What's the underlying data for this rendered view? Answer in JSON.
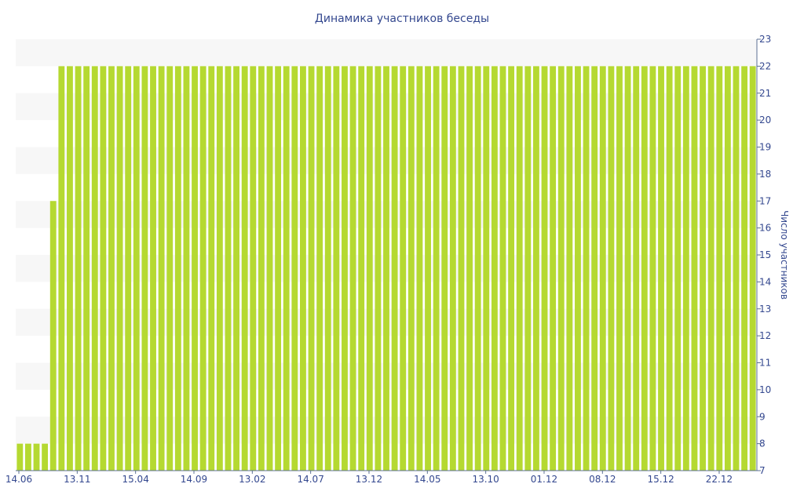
{
  "colors": {
    "bar": "#b5d931",
    "text": "#34488f",
    "band": "#f7f7f7",
    "axis": "#5b6f93"
  },
  "chart_data": {
    "type": "bar",
    "title": "Динамика участников беседы",
    "xlabel": "",
    "ylabel": "Число участников",
    "ylim": [
      7,
      23
    ],
    "y_axis_side": "right",
    "y_ticks": [
      7,
      8,
      9,
      10,
      11,
      12,
      13,
      14,
      15,
      16,
      17,
      18,
      19,
      20,
      21,
      22,
      23
    ],
    "x_tick_labels": [
      "14.06",
      "13.11",
      "15.04",
      "14.09",
      "13.02",
      "14.07",
      "13.12",
      "14.05",
      "13.10",
      "01.12",
      "08.12",
      "15.12",
      "22.12"
    ],
    "values": [
      8,
      8,
      8,
      8,
      17,
      22,
      22,
      22,
      22,
      22,
      22,
      22,
      22,
      22,
      22,
      22,
      22,
      22,
      22,
      22,
      22,
      22,
      22,
      22,
      22,
      22,
      22,
      22,
      22,
      22,
      22,
      22,
      22,
      22,
      22,
      22,
      22,
      22,
      22,
      22,
      22,
      22,
      22,
      22,
      22,
      22,
      22,
      22,
      22,
      22,
      22,
      22,
      22,
      22,
      22,
      22,
      22,
      22,
      22,
      22,
      22,
      22,
      22,
      22,
      22,
      22,
      22,
      22,
      22,
      22,
      22,
      22,
      22,
      22,
      22,
      22,
      22,
      22,
      22,
      22,
      22,
      22,
      22,
      22,
      22,
      22,
      22,
      22,
      22
    ],
    "grid": "alternating horizontal bands",
    "legend": "none"
  }
}
